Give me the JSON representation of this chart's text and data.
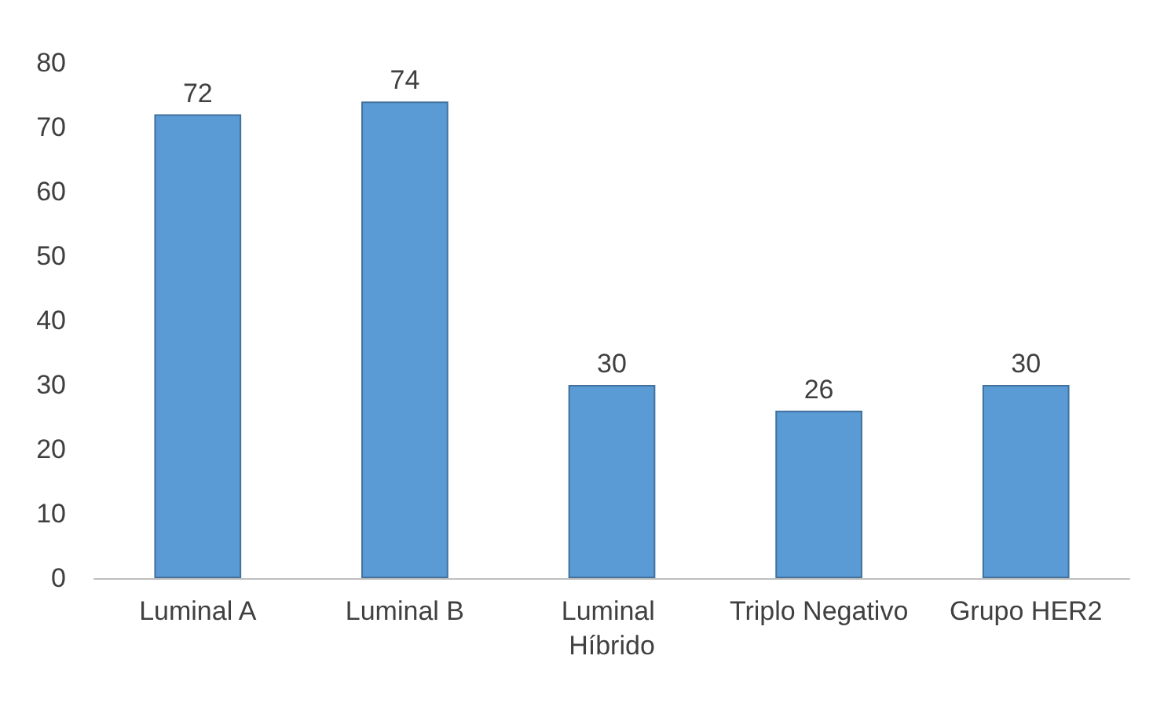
{
  "chart_data": {
    "type": "bar",
    "categories": [
      "Luminal A",
      "Luminal B",
      "Luminal Híbrido",
      "Triplo Negativo",
      "Grupo HER2"
    ],
    "values": [
      72,
      74,
      30,
      26,
      30
    ],
    "color": "#5b9bd5",
    "ylim": [
      0,
      80
    ],
    "yticks": [
      0,
      10,
      20,
      30,
      40,
      50,
      60,
      70,
      80
    ],
    "grid": false,
    "data_labels": true
  }
}
